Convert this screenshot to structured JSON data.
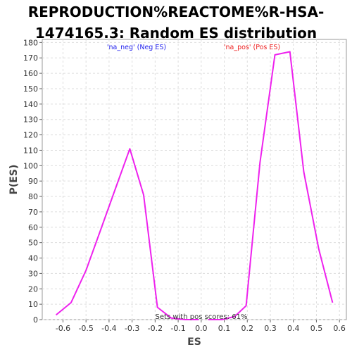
{
  "title_line1": "REPRODUCTION%REACTOME%R-HSA-",
  "title_line2": "1474165.3: Random ES distribution",
  "chart_data": {
    "type": "line",
    "title": "REPRODUCTION%REACTOME%R-HSA-1474165.3: Random ES distribution",
    "xlabel": "ES",
    "ylabel": "P(ES)",
    "xlim": [
      -0.69,
      0.63
    ],
    "ylim": [
      0,
      182
    ],
    "x_ticks": [
      "-0.6",
      "-0.5",
      "-0.4",
      "-0.3",
      "-0.2",
      "-0.1",
      "0.0",
      "0.1",
      "0.2",
      "0.3",
      "0.4",
      "0.5",
      "0.6"
    ],
    "y_ticks": [
      "0",
      "10",
      "20",
      "30",
      "40",
      "50",
      "60",
      "70",
      "80",
      "90",
      "100",
      "110",
      "120",
      "130",
      "140",
      "150",
      "160",
      "170",
      "180"
    ],
    "grid": true,
    "series": [
      {
        "name": "'na_neg' (Neg ES)",
        "legend_color": "#2222ee",
        "color": "#ee22ee",
        "points": [
          [
            -0.63,
            3
          ],
          [
            -0.565,
            11
          ],
          [
            -0.5,
            32
          ],
          [
            -0.435,
            59
          ],
          [
            -0.37,
            86
          ],
          [
            -0.31,
            111
          ],
          [
            -0.25,
            81
          ],
          [
            -0.19,
            8
          ],
          [
            -0.13,
            1
          ],
          [
            -0.07,
            0
          ],
          [
            -0.01,
            0
          ]
        ]
      },
      {
        "name": "'na_pos' (Pos ES)",
        "legend_color": "#ee2222",
        "color": "#ee22ee",
        "points": [
          [
            0.03,
            0
          ],
          [
            0.09,
            0
          ],
          [
            0.145,
            2
          ],
          [
            0.195,
            9
          ],
          [
            0.255,
            102
          ],
          [
            0.32,
            172
          ],
          [
            0.385,
            174
          ],
          [
            0.445,
            96
          ],
          [
            0.51,
            46
          ],
          [
            0.57,
            11
          ]
        ]
      }
    ],
    "annotation": "Sets with pos scores: 61%"
  }
}
